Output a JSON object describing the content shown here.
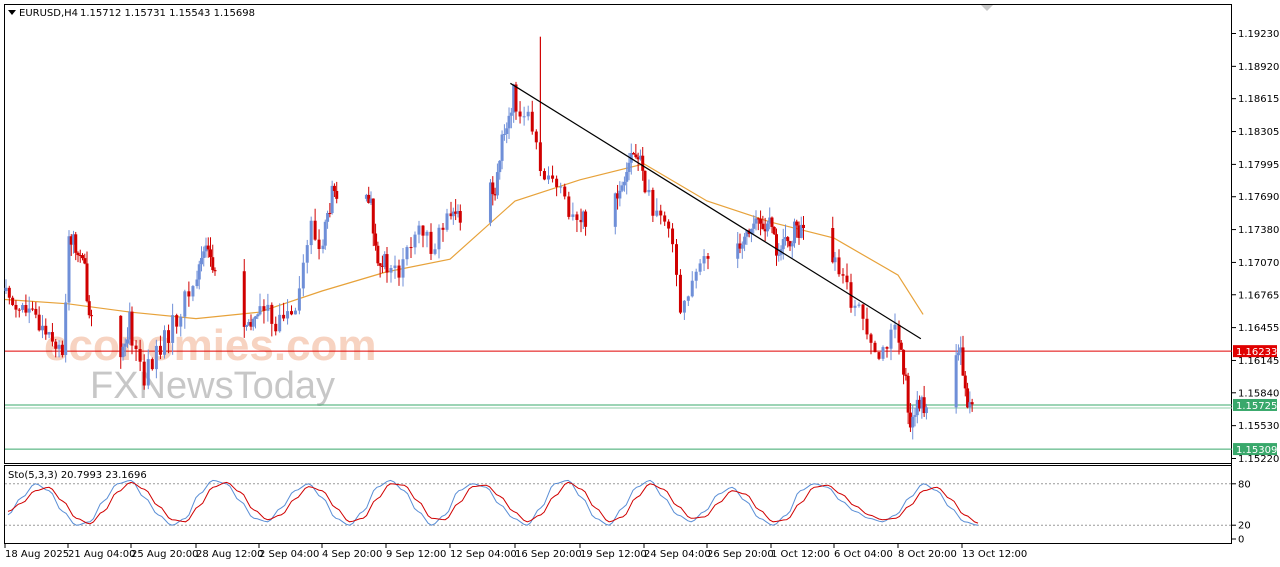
{
  "header": {
    "symbol": "EURUSD,H4",
    "ohlc": "1.15712 1.15731 1.15543 1.15698"
  },
  "watermark": {
    "line1": "economies.com",
    "line2": "FXNewsToday"
  },
  "colors": {
    "bull": "#6f8fd8",
    "bear": "#d00000",
    "ma": "#e7a23a",
    "trendline": "#000000",
    "resistance": "#e00000",
    "support": "#39a86b",
    "stoch_main": "#5b8fd6",
    "stoch_signal": "#d00000"
  },
  "chart_data": [
    {
      "type": "candlestick",
      "y_ticks": [
        "1.19230",
        "1.18920",
        "1.18615",
        "1.18305",
        "1.17995",
        "1.17690",
        "1.17380",
        "1.17070",
        "1.16765",
        "1.16455",
        "1.16145",
        "1.15840",
        "1.15530",
        "1.15220"
      ],
      "ylim": [
        1.1505,
        1.1955
      ],
      "x_ticks": [
        "18 Aug 2025",
        "21 Aug 04:00",
        "25 Aug 20:00",
        "28 Aug 12:00",
        "2 Sep 04:00",
        "4 Sep 20:00",
        "9 Sep 12:00",
        "12 Sep 04:00",
        "16 Sep 20:00",
        "19 Sep 12:00",
        "24 Sep 04:00",
        "26 Sep 20:00",
        "1 Oct 12:00",
        "6 Oct 04:00",
        "8 Oct 20:00",
        "13 Oct 12:00"
      ],
      "price_levels": [
        {
          "label": "1.16233",
          "value": 1.16233,
          "kind": "resistance"
        },
        {
          "label": "1.15725",
          "value": 1.15725,
          "kind": "current"
        },
        {
          "label": "1.15309",
          "value": 1.15309,
          "kind": "support"
        }
      ],
      "trendline": [
        {
          "x": "16 Sep 2025 12:00",
          "y": 1.1876
        },
        {
          "x": "10 Oct 2025 12:00",
          "y": 1.1635
        }
      ],
      "ma_points": [
        {
          "x": "18 Aug 00:00",
          "y": 1.1672
        },
        {
          "x": "21 Aug 04:00",
          "y": 1.1668
        },
        {
          "x": "25 Aug 20:00",
          "y": 1.166
        },
        {
          "x": "28 Aug 12:00",
          "y": 1.1654
        },
        {
          "x": "2 Sep 04:00",
          "y": 1.166
        },
        {
          "x": "4 Sep 20:00",
          "y": 1.168
        },
        {
          "x": "9 Sep 12:00",
          "y": 1.1698
        },
        {
          "x": "12 Sep 04:00",
          "y": 1.171
        },
        {
          "x": "16 Sep 20:00",
          "y": 1.1765
        },
        {
          "x": "19 Sep 12:00",
          "y": 1.1785
        },
        {
          "x": "24 Sep 04:00",
          "y": 1.18
        },
        {
          "x": "26 Sep 20:00",
          "y": 1.1765
        },
        {
          "x": "1 Oct 12:00",
          "y": 1.1745
        },
        {
          "x": "6 Oct 04:00",
          "y": 1.173
        },
        {
          "x": "8 Oct 20:00",
          "y": 1.1695
        },
        {
          "x": "10 Oct 16:00",
          "y": 1.1658
        }
      ],
      "price_path": [
        {
          "x": "18 Aug 00:00",
          "y": 1.168
        },
        {
          "x": "19 Aug 12:00",
          "y": 1.1655
        },
        {
          "x": "20 Aug 12:00",
          "y": 1.164
        },
        {
          "x": "21 Aug 00:00",
          "y": 1.1615
        },
        {
          "x": "21 Aug 08:00",
          "y": 1.1735
        },
        {
          "x": "22 Aug 12:00",
          "y": 1.17
        },
        {
          "x": "22 Aug 20:00",
          "y": 1.166
        },
        {
          "x": "25 Aug 12:00",
          "y": 1.162
        },
        {
          "x": "25 Aug 20:00",
          "y": 1.165
        },
        {
          "x": "26 Aug 12:00",
          "y": 1.16
        },
        {
          "x": "27 Aug 12:00",
          "y": 1.164
        },
        {
          "x": "28 Aug 12:00",
          "y": 1.1685
        },
        {
          "x": "29 Aug 08:00",
          "y": 1.173
        },
        {
          "x": "29 Aug 20:00",
          "y": 1.17
        },
        {
          "x": "1 Sep 12:00",
          "y": 1.164
        },
        {
          "x": "2 Sep 04:00",
          "y": 1.1665
        },
        {
          "x": "3 Sep 04:00",
          "y": 1.165
        },
        {
          "x": "3 Sep 20:00",
          "y": 1.1672
        },
        {
          "x": "4 Sep 12:00",
          "y": 1.174
        },
        {
          "x": "4 Sep 20:00",
          "y": 1.172
        },
        {
          "x": "5 Sep 16:00",
          "y": 1.177
        },
        {
          "x": "8 Sep 12:00",
          "y": 1.176
        },
        {
          "x": "8 Sep 20:00",
          "y": 1.172
        },
        {
          "x": "9 Sep 12:00",
          "y": 1.1705
        },
        {
          "x": "10 Sep 04:00",
          "y": 1.1695
        },
        {
          "x": "10 Sep 20:00",
          "y": 1.1735
        },
        {
          "x": "11 Sep 12:00",
          "y": 1.1725
        },
        {
          "x": "12 Sep 04:00",
          "y": 1.1745
        },
        {
          "x": "15 Sep 12:00",
          "y": 1.178
        },
        {
          "x": "16 Sep 04:00",
          "y": 1.183
        },
        {
          "x": "16 Sep 20:00",
          "y": 1.1865
        },
        {
          "x": "17 Sep 12:00",
          "y": 1.184
        },
        {
          "x": "17 Sep 20:00",
          "y": 1.181
        },
        {
          "x": "18 Sep 12:00",
          "y": 1.178
        },
        {
          "x": "19 Sep 04:00",
          "y": 1.176
        },
        {
          "x": "19 Sep 12:00",
          "y": 1.1745
        },
        {
          "x": "22 Sep 12:00",
          "y": 1.1775
        },
        {
          "x": "23 Sep 04:00",
          "y": 1.181
        },
        {
          "x": "23 Sep 20:00",
          "y": 1.1805
        },
        {
          "x": "24 Sep 04:00",
          "y": 1.1795
        },
        {
          "x": "24 Sep 20:00",
          "y": 1.1745
        },
        {
          "x": "25 Sep 12:00",
          "y": 1.1735
        },
        {
          "x": "25 Sep 20:00",
          "y": 1.1665
        },
        {
          "x": "26 Sep 12:00",
          "y": 1.169
        },
        {
          "x": "26 Sep 20:00",
          "y": 1.1715
        },
        {
          "x": "29 Sep 12:00",
          "y": 1.173
        },
        {
          "x": "30 Sep 12:00",
          "y": 1.1745
        },
        {
          "x": "1 Oct 12:00",
          "y": 1.174
        },
        {
          "x": "2 Oct 04:00",
          "y": 1.1715
        },
        {
          "x": "2 Oct 20:00",
          "y": 1.1725
        },
        {
          "x": "3 Oct 12:00",
          "y": 1.174
        },
        {
          "x": "6 Oct 04:00",
          "y": 1.171
        },
        {
          "x": "6 Oct 20:00",
          "y": 1.168
        },
        {
          "x": "7 Oct 12:00",
          "y": 1.1655
        },
        {
          "x": "8 Oct 04:00",
          "y": 1.1625
        },
        {
          "x": "8 Oct 20:00",
          "y": 1.164
        },
        {
          "x": "9 Oct 12:00",
          "y": 1.159
        },
        {
          "x": "9 Oct 20:00",
          "y": 1.156
        },
        {
          "x": "10 Oct 12:00",
          "y": 1.157
        },
        {
          "x": "13 Oct 04:00",
          "y": 1.161
        },
        {
          "x": "13 Oct 12:00",
          "y": 1.1622
        },
        {
          "x": "13 Oct 20:00",
          "y": 1.158
        },
        {
          "x": "14 Oct 04:00",
          "y": 1.157
        }
      ],
      "spike": {
        "x": "17 Sep 20:00",
        "high": 1.192,
        "low": 1.18
      }
    },
    {
      "type": "line",
      "label": "Sto(5,3,3) 20.7993 23.1696",
      "levels": [
        "80",
        "20"
      ],
      "y_ticks": [
        "80",
        "20",
        "0"
      ],
      "ylim": [
        0,
        100
      ],
      "series": [
        {
          "name": "main",
          "values": [
            35,
            60,
            80,
            70,
            40,
            20,
            25,
            55,
            80,
            85,
            60,
            35,
            20,
            30,
            65,
            85,
            80,
            55,
            30,
            25,
            45,
            70,
            80,
            60,
            30,
            20,
            40,
            75,
            85,
            70,
            40,
            20,
            35,
            70,
            80,
            75,
            50,
            30,
            20,
            45,
            80,
            85,
            60,
            30,
            20,
            45,
            75,
            85,
            60,
            35,
            25,
            40,
            65,
            75,
            55,
            30,
            20,
            35,
            70,
            80,
            75,
            55,
            40,
            30,
            25,
            35,
            60,
            80,
            70,
            45,
            25,
            20
          ]
        },
        {
          "name": "signal",
          "values": [
            40,
            52,
            70,
            75,
            55,
            30,
            22,
            40,
            68,
            82,
            72,
            48,
            28,
            25,
            48,
            75,
            82,
            68,
            42,
            28,
            35,
            58,
            76,
            70,
            45,
            25,
            30,
            58,
            80,
            78,
            55,
            30,
            28,
            52,
            76,
            78,
            62,
            40,
            25,
            35,
            62,
            82,
            72,
            45,
            25,
            32,
            60,
            80,
            72,
            48,
            30,
            32,
            52,
            70,
            65,
            42,
            25,
            28,
            52,
            75,
            78,
            65,
            48,
            35,
            28,
            30,
            48,
            70,
            75,
            58,
            35,
            23
          ]
        }
      ]
    }
  ]
}
